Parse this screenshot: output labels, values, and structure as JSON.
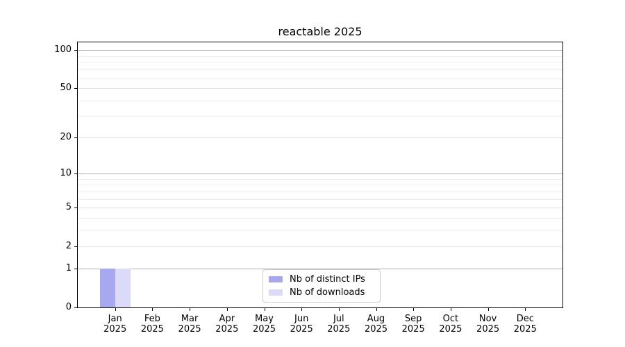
{
  "chart_data": {
    "type": "bar",
    "title": "reactable 2025",
    "categories": [
      "Jan 2025",
      "Feb 2025",
      "Mar 2025",
      "Apr 2025",
      "May 2025",
      "Jun 2025",
      "Jul 2025",
      "Aug 2025",
      "Sep 2025",
      "Oct 2025",
      "Nov 2025",
      "Dec 2025"
    ],
    "x_axis": {
      "months": [
        "Jan",
        "Feb",
        "Mar",
        "Apr",
        "May",
        "Jun",
        "Jul",
        "Aug",
        "Sep",
        "Oct",
        "Nov",
        "Dec"
      ],
      "year": "2025"
    },
    "series": [
      {
        "name": "Nb of distinct IPs",
        "color": "#a8a8f0",
        "values": [
          1,
          0,
          0,
          0,
          0,
          0,
          0,
          0,
          0,
          0,
          0,
          0
        ]
      },
      {
        "name": "Nb of downloads",
        "color": "#dbdbf9",
        "values": [
          1,
          0,
          0,
          0,
          0,
          0,
          0,
          0,
          0,
          0,
          0,
          0
        ]
      }
    ],
    "y_axis": {
      "scale": "log10(1+v)",
      "tick_values": [
        0,
        1,
        2,
        5,
        10,
        20,
        50,
        100
      ],
      "max_value": 115,
      "decade_gridlines": [
        1,
        10,
        100
      ],
      "labeled_gridlines": [
        2,
        5,
        20,
        50
      ],
      "minor_gridlines": [
        3,
        4,
        6,
        7,
        8,
        9,
        30,
        40,
        60,
        70,
        80,
        90
      ]
    },
    "grid": "horizontal-only",
    "legend": {
      "position": "inside-bottom-center",
      "entries": [
        "Nb of distinct IPs",
        "Nb of downloads"
      ]
    },
    "colors": {
      "bar_distinct_ips": "#a8a8f0",
      "bar_downloads": "#dbdbf9",
      "decade_gridline": "#b0b0b0",
      "labeled_gridline": "#e4e4e4",
      "minor_gridline": "#ededed",
      "spine": "#000000",
      "background": "#ffffff"
    }
  }
}
